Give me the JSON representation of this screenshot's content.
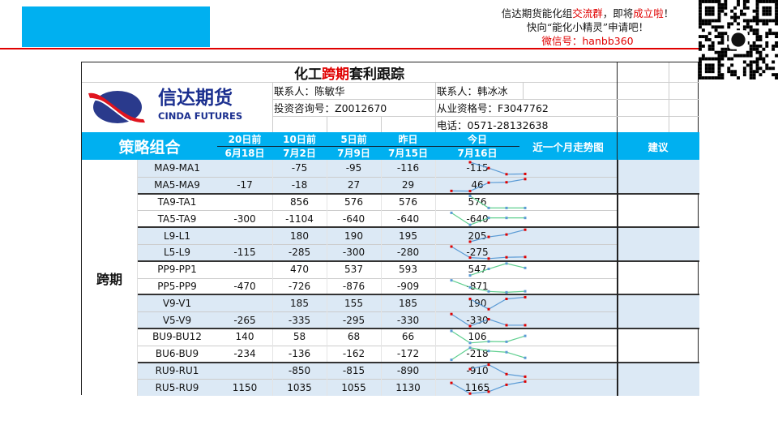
{
  "promo": {
    "line1a": "信达期货能化组",
    "line1b": "交流群",
    "line1c": "，即将",
    "line1d": "成立啦",
    "line1e": "！",
    "line2": "快向“能化小精灵”申请吧！",
    "line3": "微信号：hanbb360"
  },
  "title": {
    "a": "化工",
    "b": "跨期",
    "c": "套利跟踪"
  },
  "logo": {
    "cn": "信达期货",
    "en": "CINDA FUTURES"
  },
  "contacts": {
    "c1": "联系人：陈敏华",
    "c1id": "投资咨询号：Z0012670",
    "c2": "联系人：韩冰冰",
    "c2id": "从业资格号：F3047762",
    "c2tel": "电话：0571-28132638"
  },
  "header": {
    "strategy": "策略组合",
    "cols": [
      {
        "rel": "20日前",
        "date": "6月18日"
      },
      {
        "rel": "10日前",
        "date": "7月2日"
      },
      {
        "rel": "5日前",
        "date": "7月9日"
      },
      {
        "rel": "昨日",
        "date": "7月15日"
      },
      {
        "rel": "今日",
        "date": "7月16日"
      }
    ],
    "trend": "近一个月走势图",
    "advice": "建议"
  },
  "category": "跨期",
  "colors": {
    "accent": "#00b0f0",
    "shade": "#dce9f5",
    "blue_line": "#5b9bd5",
    "green_line": "#5fcf8f",
    "red": "#e00000"
  },
  "groups": [
    {
      "shaded": true,
      "rows": [
        {
          "name": "MA9-MA1",
          "v": [
            null,
            -75,
            -95,
            -116,
            -115
          ]
        },
        {
          "name": "MA5-MA9",
          "v": [
            -17,
            -18,
            27,
            29,
            46
          ]
        }
      ]
    },
    {
      "shaded": false,
      "rows": [
        {
          "name": "TA9-TA1",
          "v": [
            null,
            856,
            576,
            576,
            576
          ]
        },
        {
          "name": "TA5-TA9",
          "v": [
            -300,
            -1104,
            -640,
            -640,
            -640
          ]
        }
      ]
    },
    {
      "shaded": true,
      "rows": [
        {
          "name": "L9-L1",
          "v": [
            null,
            180,
            190,
            195,
            205
          ]
        },
        {
          "name": "L5-L9",
          "v": [
            -115,
            -285,
            -300,
            -280,
            -275
          ]
        }
      ]
    },
    {
      "shaded": false,
      "rows": [
        {
          "name": "PP9-PP1",
          "v": [
            null,
            470,
            537,
            593,
            547
          ]
        },
        {
          "name": "PP5-PP9",
          "v": [
            -470,
            -726,
            -876,
            -909,
            -871
          ]
        }
      ]
    },
    {
      "shaded": true,
      "rows": [
        {
          "name": "V9-V1",
          "v": [
            null,
            185,
            155,
            185,
            190
          ]
        },
        {
          "name": "V5-V9",
          "v": [
            -265,
            -335,
            -295,
            -330,
            -330
          ]
        }
      ]
    },
    {
      "shaded": false,
      "rows": [
        {
          "name": "BU9-BU12",
          "v": [
            140,
            58,
            68,
            66,
            106
          ]
        },
        {
          "name": "BU6-BU9",
          "v": [
            -234,
            -136,
            -162,
            -172,
            -218
          ]
        }
      ]
    },
    {
      "shaded": true,
      "rows": [
        {
          "name": "RU9-RU1",
          "v": [
            null,
            -850,
            -815,
            -890,
            -910
          ]
        },
        {
          "name": "RU5-RU9",
          "v": [
            1150,
            1035,
            1055,
            1130,
            1165
          ]
        }
      ]
    }
  ]
}
